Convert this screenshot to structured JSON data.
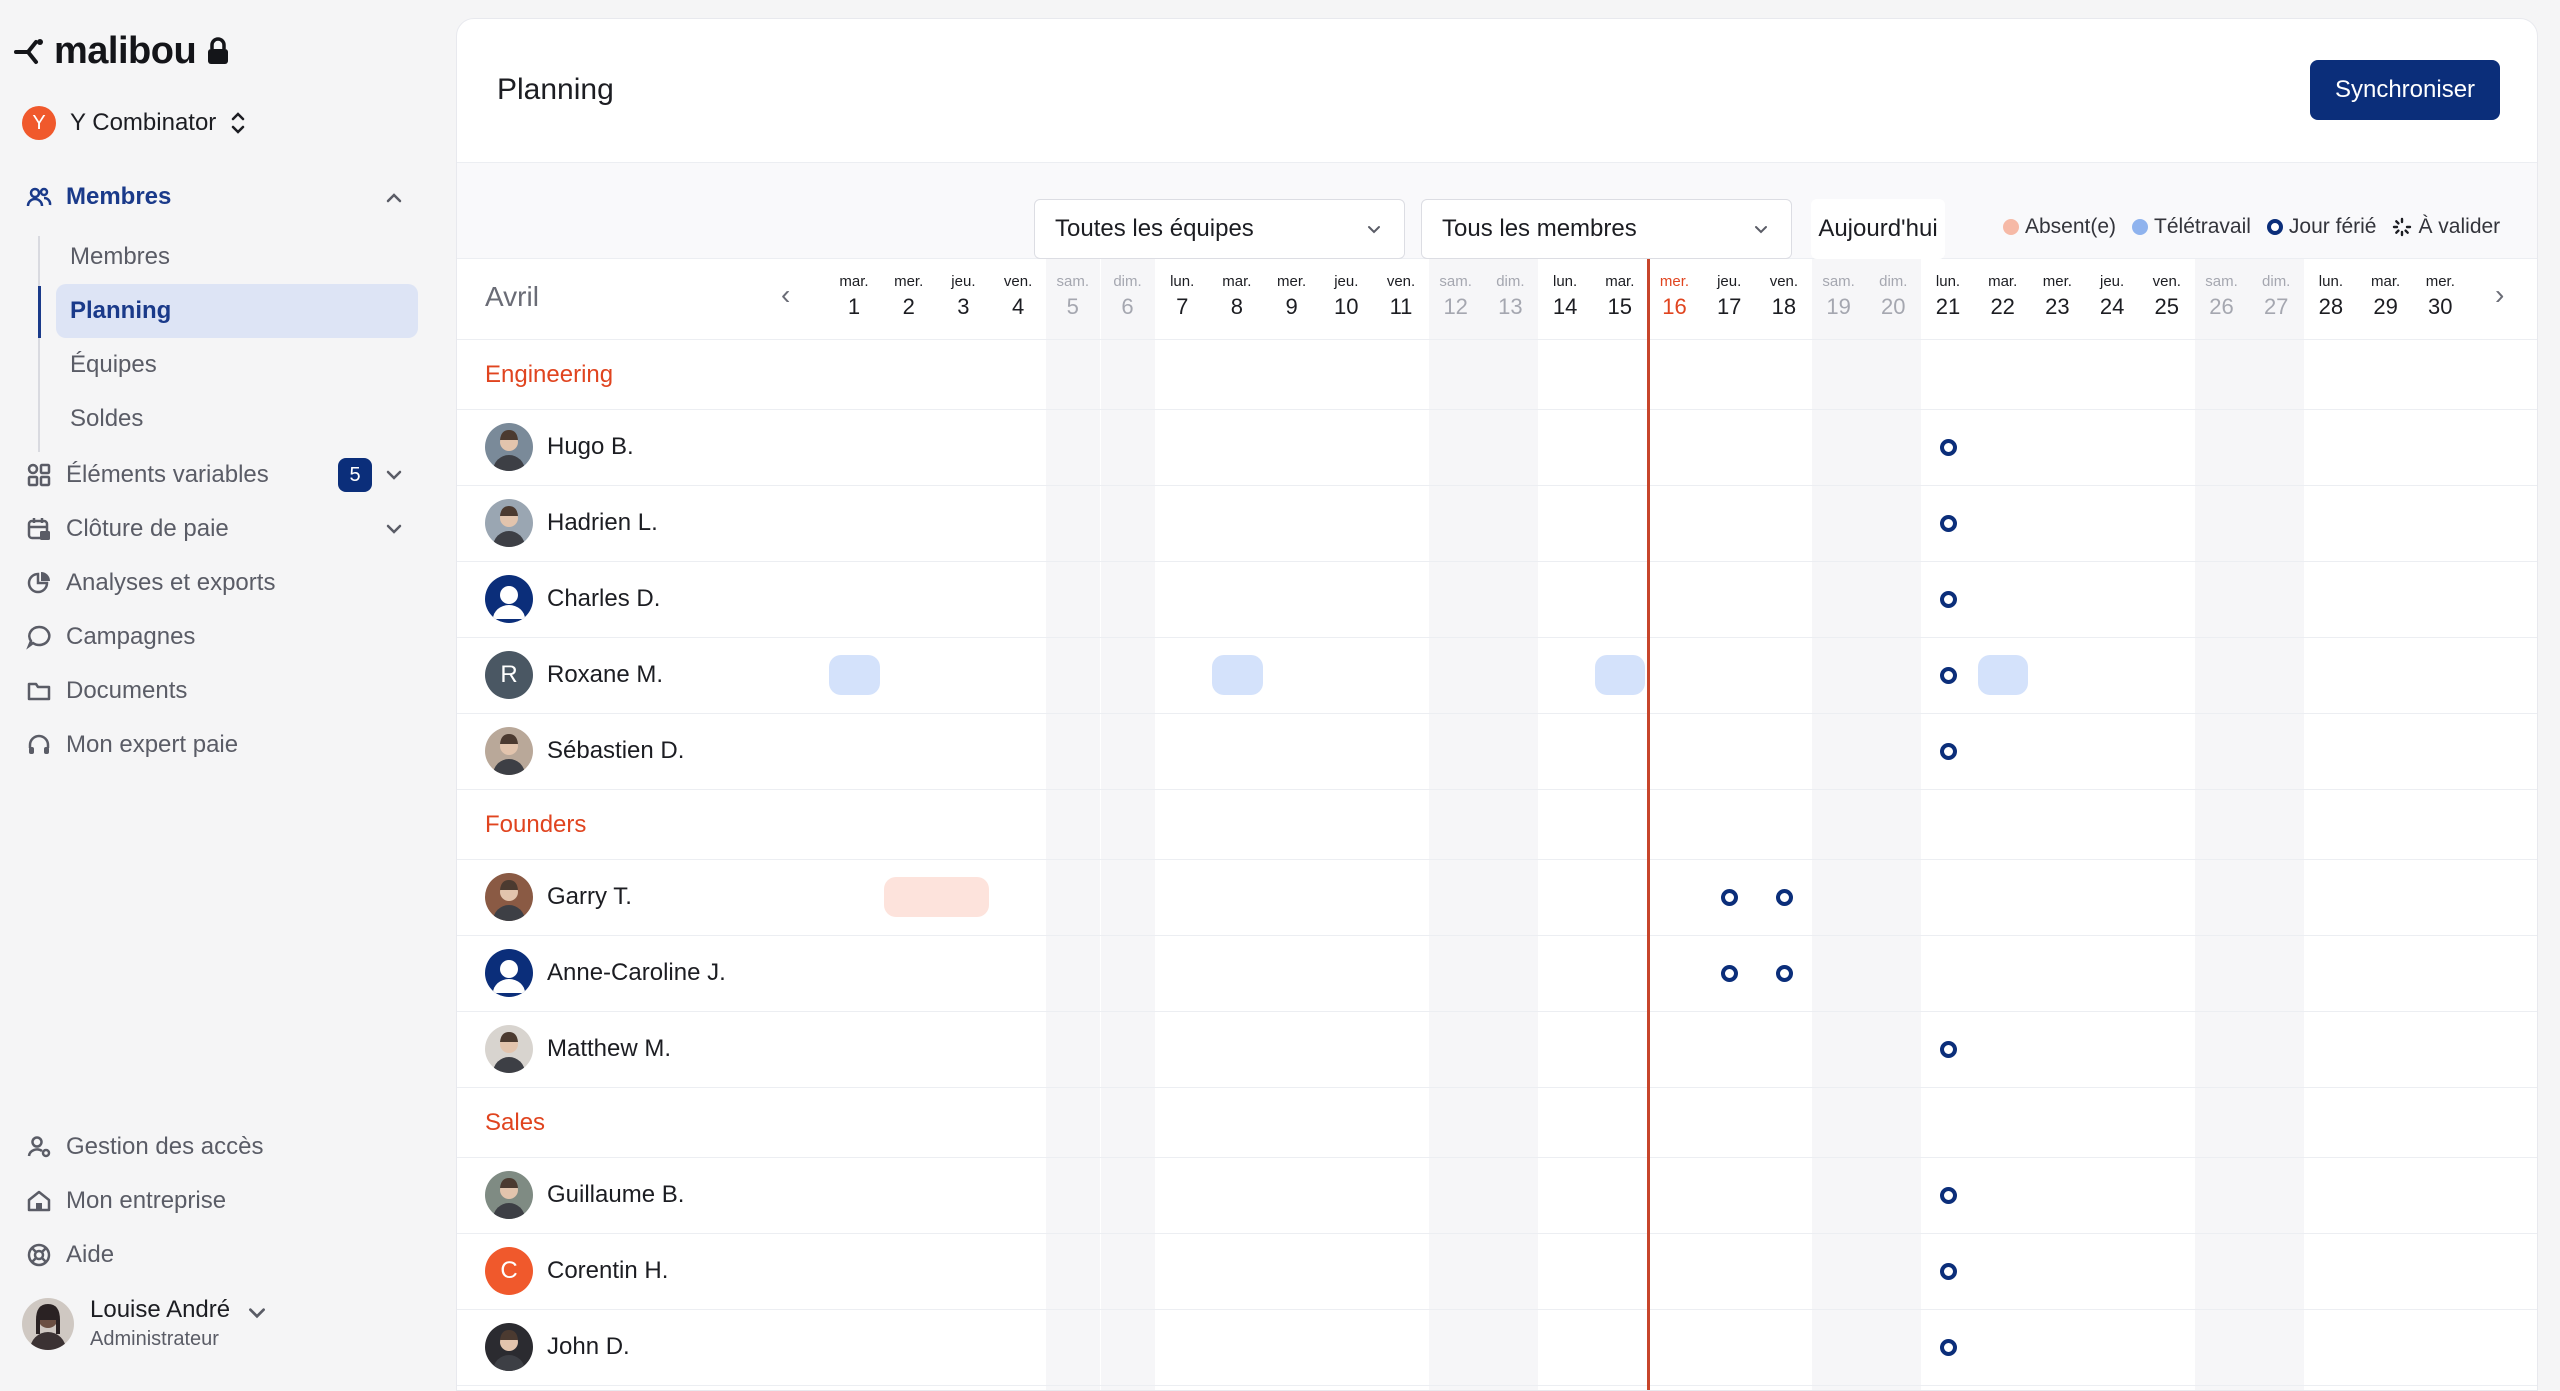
{
  "app": {
    "logo": "malibou"
  },
  "org": {
    "initial": "Y",
    "name": "Y Combinator"
  },
  "nav": {
    "membres": "Membres",
    "sub": [
      "Membres",
      "Planning",
      "Équipes",
      "Soldes"
    ],
    "elements": "Éléments variables",
    "elements_badge": "5",
    "cloture": "Clôture de paie",
    "analyses": "Analyses et exports",
    "campagnes": "Campagnes",
    "documents": "Documents",
    "expert": "Mon expert paie",
    "acces": "Gestion des accès",
    "entreprise": "Mon entreprise",
    "aide": "Aide"
  },
  "user": {
    "name": "Louise André",
    "role": "Administrateur"
  },
  "header": {
    "title": "Planning",
    "sync": "Synchroniser"
  },
  "toolbar": {
    "teams": "Toutes les équipes",
    "members": "Tous les membres",
    "today": "Aujourd'hui",
    "legend": {
      "absent": "Absent(e)",
      "teletravail": "Télétravail",
      "ferie": "Jour férié",
      "valider": "À valider"
    }
  },
  "colors": {
    "accent": "#0b2e7a",
    "today": "#e0441f",
    "absent": "#f6b9a6",
    "teletravail": "#8fb3ee",
    "remote_block": "#d4e2fb",
    "absent_block": "#fde3dc"
  },
  "calendar": {
    "month": "Avril",
    "days": [
      {
        "dw": "mar.",
        "dn": "1"
      },
      {
        "dw": "mer.",
        "dn": "2"
      },
      {
        "dw": "jeu.",
        "dn": "3"
      },
      {
        "dw": "ven.",
        "dn": "4"
      },
      {
        "dw": "sam.",
        "dn": "5",
        "we": true
      },
      {
        "dw": "dim.",
        "dn": "6",
        "we": true
      },
      {
        "dw": "lun.",
        "dn": "7"
      },
      {
        "dw": "mar.",
        "dn": "8"
      },
      {
        "dw": "mer.",
        "dn": "9"
      },
      {
        "dw": "jeu.",
        "dn": "10"
      },
      {
        "dw": "ven.",
        "dn": "11"
      },
      {
        "dw": "sam.",
        "dn": "12",
        "we": true
      },
      {
        "dw": "dim.",
        "dn": "13",
        "we": true
      },
      {
        "dw": "lun.",
        "dn": "14"
      },
      {
        "dw": "mar.",
        "dn": "15"
      },
      {
        "dw": "mer.",
        "dn": "16",
        "today": true
      },
      {
        "dw": "jeu.",
        "dn": "17"
      },
      {
        "dw": "ven.",
        "dn": "18"
      },
      {
        "dw": "sam.",
        "dn": "19",
        "we": true
      },
      {
        "dw": "dim.",
        "dn": "20",
        "we": true
      },
      {
        "dw": "lun.",
        "dn": "21"
      },
      {
        "dw": "mar.",
        "dn": "22"
      },
      {
        "dw": "mer.",
        "dn": "23"
      },
      {
        "dw": "jeu.",
        "dn": "24"
      },
      {
        "dw": "ven.",
        "dn": "25"
      },
      {
        "dw": "sam.",
        "dn": "26",
        "we": true
      },
      {
        "dw": "dim.",
        "dn": "27",
        "we": true
      },
      {
        "dw": "lun.",
        "dn": "28"
      },
      {
        "dw": "mar.",
        "dn": "29"
      },
      {
        "dw": "mer.",
        "dn": "30"
      }
    ],
    "groups": [
      {
        "name": "Engineering",
        "members": [
          {
            "name": "Hugo B.",
            "holidays": [
              21
            ]
          },
          {
            "name": "Hadrien L.",
            "holidays": [
              21
            ]
          },
          {
            "name": "Charles D.",
            "holidays": [
              21
            ]
          },
          {
            "name": "Roxane M.",
            "initial": "R",
            "holidays": [
              21
            ],
            "remote": [
              1,
              8,
              15,
              22
            ]
          },
          {
            "name": "Sébastien D.",
            "holidays": [
              21
            ]
          }
        ]
      },
      {
        "name": "Founders",
        "members": [
          {
            "name": "Garry T.",
            "holidays": [
              17,
              18
            ],
            "absent": [
              [
                2,
                3
              ]
            ]
          },
          {
            "name": "Anne-Caroline J.",
            "holidays": [
              17,
              18
            ]
          },
          {
            "name": "Matthew M.",
            "holidays": [
              21
            ]
          }
        ]
      },
      {
        "name": "Sales",
        "members": [
          {
            "name": "Guillaume B.",
            "holidays": [
              21
            ]
          },
          {
            "name": "Corentin H.",
            "initial": "C",
            "holidays": [
              21
            ]
          },
          {
            "name": "John D.",
            "holidays": [
              21
            ]
          }
        ]
      }
    ]
  }
}
